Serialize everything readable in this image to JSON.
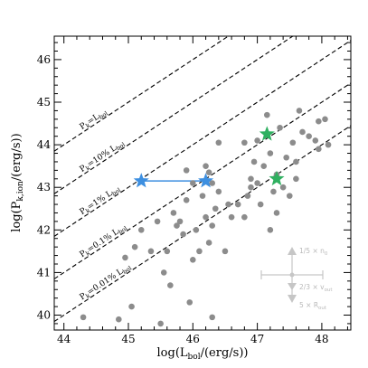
{
  "chart_data": {
    "type": "scatter",
    "xlabel": {
      "main": "log(L",
      "sub": "bol",
      "rest": "/(erg/s))"
    },
    "ylabel": {
      "main": "log(P",
      "sub": "k,ion",
      "rest": "/(erg/s))"
    },
    "xlim": [
      43.85,
      48.45
    ],
    "ylim": [
      39.65,
      46.55
    ],
    "x_ticks": [
      44,
      45,
      46,
      47,
      48
    ],
    "y_ticks": [
      40,
      41,
      42,
      43,
      44,
      45,
      46
    ],
    "grid": false,
    "legend": "none",
    "colors": {
      "points": "#8c8c8c",
      "blue_star": "#3d8fe0",
      "green_star": "#2fb060",
      "connector": "#3d8fe0",
      "key": "#c6c6c6",
      "lines": "#000000"
    },
    "reference_lines": [
      {
        "fraction": 1,
        "offset": 0,
        "label": {
          "main": "P",
          "sub": "k",
          "rest": "=L",
          "sub2": "bol",
          "rest2": ""
        },
        "label_at": 44.25
      },
      {
        "fraction": 0.1,
        "offset": -1,
        "label": {
          "main": "P",
          "sub": "k",
          "rest": "=10% L",
          "sub2": "bol",
          "rest2": ""
        },
        "label_at": 44.25
      },
      {
        "fraction": 0.01,
        "offset": -2,
        "label": {
          "main": "P",
          "sub": "k",
          "rest": "=1% L",
          "sub2": "bol",
          "rest2": ""
        },
        "label_at": 44.25
      },
      {
        "fraction": 0.001,
        "offset": -3,
        "label": {
          "main": "P",
          "sub": "k",
          "rest": "=0.1% L",
          "sub2": "bol",
          "rest2": ""
        },
        "label_at": 44.25
      },
      {
        "fraction": 0.0001,
        "offset": -4,
        "label": {
          "main": "P",
          "sub": "k",
          "rest": "=0.01% L",
          "sub2": "bol",
          "rest2": ""
        },
        "label_at": 44.25
      }
    ],
    "series": [
      {
        "marker": "circle",
        "points": [
          [
            44.3,
            39.95
          ],
          [
            44.85,
            39.9
          ],
          [
            45.05,
            40.2
          ],
          [
            45.5,
            39.8
          ],
          [
            45.65,
            40.7
          ],
          [
            45.95,
            40.3
          ],
          [
            46.3,
            39.95
          ],
          [
            44.95,
            41.35
          ],
          [
            45.1,
            41.6
          ],
          [
            45.2,
            42.0
          ],
          [
            45.35,
            41.5
          ],
          [
            45.45,
            42.2
          ],
          [
            45.55,
            41.0
          ],
          [
            45.6,
            41.5
          ],
          [
            45.7,
            42.4
          ],
          [
            45.75,
            42.1
          ],
          [
            45.85,
            41.9
          ],
          [
            45.9,
            42.7
          ],
          [
            46.0,
            41.3
          ],
          [
            46.05,
            42.0
          ],
          [
            46.1,
            41.5
          ],
          [
            46.15,
            42.8
          ],
          [
            46.2,
            42.3
          ],
          [
            46.25,
            41.7
          ],
          [
            46.3,
            42.1
          ],
          [
            46.35,
            42.5
          ],
          [
            46.4,
            42.9
          ],
          [
            46.5,
            41.5
          ],
          [
            46.55,
            42.6
          ],
          [
            46.6,
            42.3
          ],
          [
            46.7,
            42.6
          ],
          [
            46.8,
            42.3
          ],
          [
            46.85,
            42.8
          ],
          [
            46.9,
            43.2
          ],
          [
            46.95,
            43.6
          ],
          [
            47.0,
            43.1
          ],
          [
            47.05,
            42.6
          ],
          [
            47.1,
            43.5
          ],
          [
            47.2,
            43.8
          ],
          [
            47.25,
            42.9
          ],
          [
            47.3,
            43.3
          ],
          [
            47.35,
            44.4
          ],
          [
            47.4,
            43.0
          ],
          [
            47.45,
            43.7
          ],
          [
            47.55,
            44.05
          ],
          [
            47.6,
            43.6
          ],
          [
            47.7,
            44.3
          ],
          [
            47.8,
            44.2
          ],
          [
            47.9,
            44.1
          ],
          [
            47.95,
            44.55
          ],
          [
            48.05,
            44.6
          ],
          [
            48.1,
            44.0
          ],
          [
            47.95,
            43.9
          ],
          [
            47.3,
            42.4
          ],
          [
            46.0,
            43.1
          ],
          [
            45.8,
            42.2
          ],
          [
            46.25,
            43.35
          ],
          [
            46.4,
            44.05
          ],
          [
            46.3,
            43.1
          ],
          [
            47.15,
            44.7
          ],
          [
            47.65,
            44.8
          ],
          [
            47.5,
            42.8
          ],
          [
            46.8,
            44.05
          ],
          [
            46.9,
            43.0
          ],
          [
            46.2,
            43.5
          ],
          [
            45.9,
            43.4
          ],
          [
            47.0,
            44.1
          ],
          [
            47.2,
            42.0
          ],
          [
            47.6,
            43.2
          ]
        ]
      },
      {
        "marker": "star",
        "color_key": "blue_star",
        "points": [
          [
            45.2,
            43.15
          ],
          [
            46.2,
            43.15
          ]
        ]
      },
      {
        "marker": "star",
        "color_key": "green_star",
        "points": [
          [
            47.15,
            44.25
          ],
          [
            47.3,
            43.2
          ]
        ]
      }
    ],
    "connector": [
      [
        45.2,
        43.15
      ],
      [
        46.2,
        43.15
      ]
    ],
    "key": {
      "items": [
        {
          "main": "1/5 × n",
          "sub": "0"
        },
        {
          "main": "2/3 × v",
          "sub": "out"
        },
        {
          "main": "5 × R",
          "sub": "out"
        }
      ]
    }
  }
}
